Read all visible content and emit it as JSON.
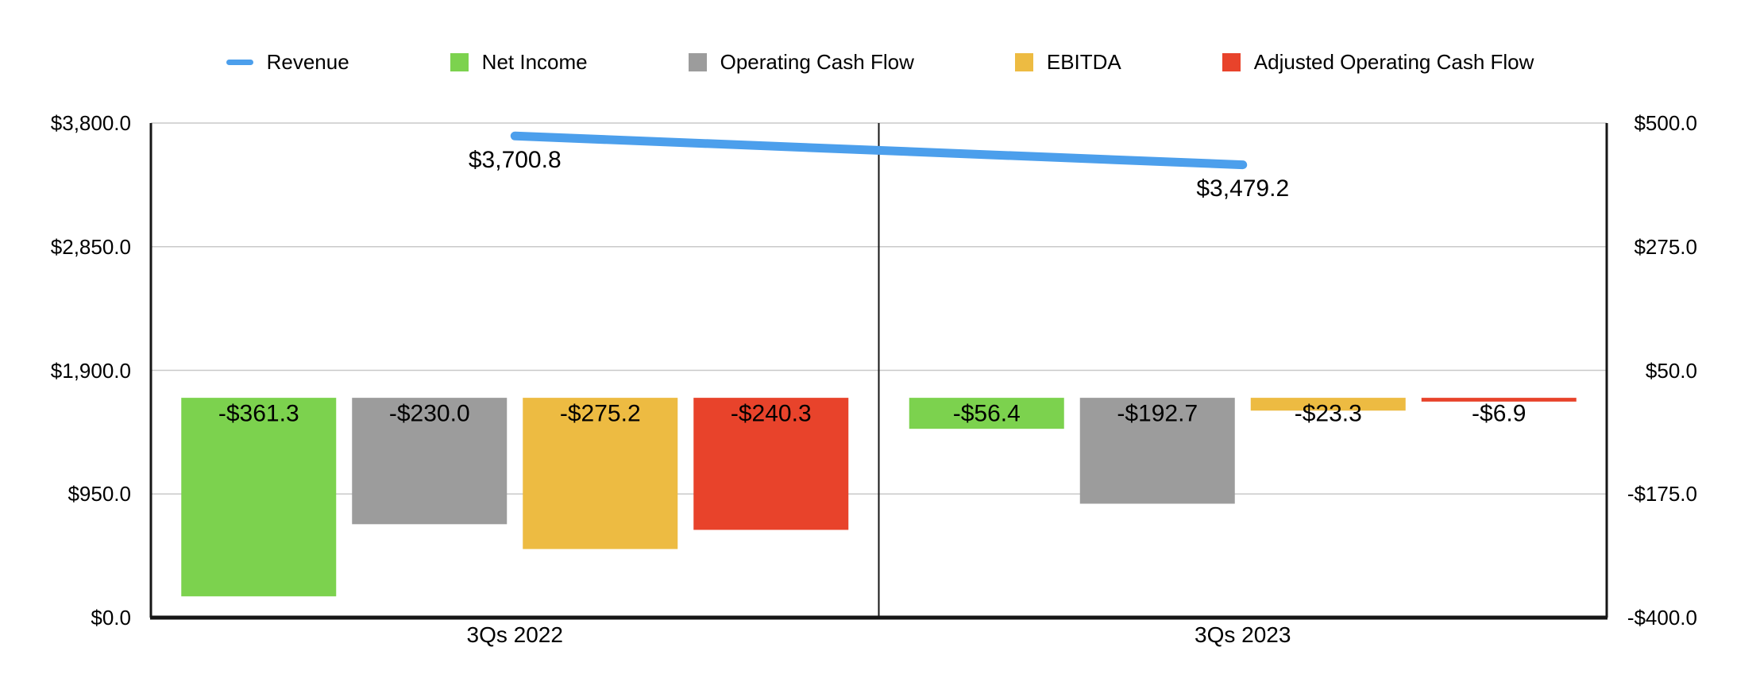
{
  "chart_data": {
    "type": "combo",
    "categories": [
      "3Qs 2022",
      "3Qs 2023"
    ],
    "series": [
      {
        "name": "Revenue",
        "type": "line",
        "axis": "left",
        "color": "#4C9FEC",
        "values": [
          3700.8,
          3479.2
        ],
        "labels": [
          "$3,700.8",
          "$3,479.2"
        ]
      },
      {
        "name": "Net Income",
        "type": "bar",
        "axis": "right",
        "color": "#7CD24E",
        "values": [
          -361.3,
          -56.4
        ],
        "labels": [
          "-$361.3",
          "-$56.4"
        ]
      },
      {
        "name": "Operating Cash Flow",
        "type": "bar",
        "axis": "right",
        "color": "#9C9C9C",
        "values": [
          -230.0,
          -192.7
        ],
        "labels": [
          "-$230.0",
          "-$192.7"
        ]
      },
      {
        "name": "EBITDA",
        "type": "bar",
        "axis": "right",
        "color": "#EDBB42",
        "values": [
          -275.2,
          -23.3
        ],
        "labels": [
          "-$275.2",
          "-$23.3"
        ]
      },
      {
        "name": "Adjusted Operating Cash Flow",
        "type": "bar",
        "axis": "right",
        "color": "#E8432B",
        "values": [
          -240.3,
          -6.9
        ],
        "labels": [
          "-$240.3",
          "-$6.9"
        ]
      }
    ],
    "left_axis": {
      "min": 0,
      "max": 3800,
      "tick_labels": [
        "$3,800.0",
        "$2,850.0",
        "$1,900.0",
        "$950.0",
        "$0.0"
      ]
    },
    "right_axis": {
      "min": -400,
      "max": 500,
      "tick_labels": [
        "$500.0",
        "$275.0",
        "$50.0",
        "-$175.0",
        "-$400.0"
      ]
    },
    "grid": true,
    "legend_position": "top",
    "colors": {
      "grid_line": "#C9C9C9",
      "axis_line": "#161616",
      "label_text": "#000000",
      "background": "#FFFFFF"
    }
  }
}
